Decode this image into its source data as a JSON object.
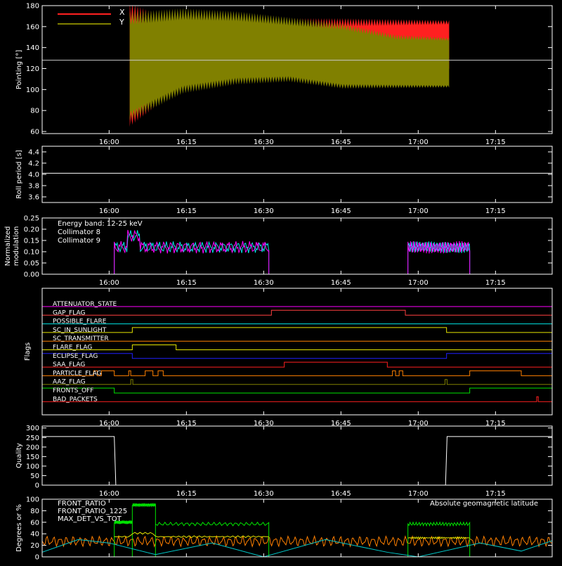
{
  "chart_data": [
    {
      "type": "line",
      "ylabel": "Pointing [°]",
      "ylim": [
        58,
        180
      ],
      "yticks": [
        "60",
        "80",
        "100",
        "120",
        "140",
        "160",
        "180"
      ],
      "xtick_labels": [
        "16:00",
        "16:15",
        "16:30",
        "16:45",
        "17:00",
        "17:15"
      ],
      "legend": [
        "X",
        "Y"
      ],
      "colors": {
        "x": "#ff2020",
        "y": "#808000",
        "ref": "#c8c8c8",
        "frame": "#ffffff"
      },
      "series": [
        {
          "name": "X",
          "x_min_start": 4,
          "x_min_end": 66,
          "upper": [
            175,
            155,
            160,
            163,
            164,
            164,
            164
          ],
          "lower": [
            70,
            108,
            115,
            118,
            120,
            120,
            121
          ]
        },
        {
          "name": "Y",
          "x_min_start": 4,
          "x_min_end": 66,
          "upper": [
            168,
            172,
            170,
            165,
            160,
            150,
            148
          ],
          "lower": [
            75,
            100,
            108,
            110,
            103,
            103,
            103
          ]
        }
      ],
      "reference_value": 128
    },
    {
      "type": "line",
      "ylabel": "Roll period [s]",
      "ylim": [
        3.5,
        4.5
      ],
      "yticks": [
        "3.6",
        "3.8",
        "4.0",
        "4.2",
        "4.4"
      ],
      "xtick_labels": [
        "16:00",
        "16:15",
        "16:30",
        "16:45",
        "17:00",
        "17:15"
      ],
      "series": [
        {
          "name": "",
          "value": 4.02
        }
      ]
    },
    {
      "type": "line",
      "ylabel": "Normalized modulation",
      "ylim": [
        0,
        0.25
      ],
      "yticks": [
        "0.00",
        "0.05",
        "0.10",
        "0.15",
        "0.20",
        "0.25"
      ],
      "xtick_labels": [
        "16:00",
        "16:15",
        "16:30",
        "16:45",
        "17:00",
        "17:15"
      ],
      "annotation": "Energy band: 12-25 keV",
      "legend": [
        "Collimator 8",
        "Collimator 9"
      ],
      "colors": {
        "c8": "#00e5e5",
        "c9": "#ff00ff"
      },
      "segments": [
        {
          "start_min": 1,
          "end_min": 31,
          "level": 0.12
        },
        {
          "start_min": 58,
          "end_min": 70,
          "level": 0.12
        }
      ]
    },
    {
      "type": "line",
      "ylabel": "Flags",
      "xtick_labels": [
        "16:00",
        "16:15",
        "16:30",
        "16:45",
        "17:00",
        "17:15"
      ],
      "flags": [
        {
          "name": "ATTENUATOR_STATE",
          "color": "#ff00ff",
          "high": []
        },
        {
          "name": "GAP_FLAG",
          "color": "#ff4040",
          "high": [
            [
              31.5,
              57.5
            ]
          ]
        },
        {
          "name": "POSSIBLE_FLARE",
          "color": "#00e5e5",
          "high": []
        },
        {
          "name": "SC_IN_SUNLIGHT",
          "color": "#e5e500",
          "high": [
            [
              4.5,
              65.5
            ]
          ]
        },
        {
          "name": "SC_TRANSMITTER",
          "color": "#ff8000",
          "high": []
        },
        {
          "name": "FLARE_FLAG",
          "color": "#e5e500",
          "high": [
            [
              4.5,
              13
            ]
          ]
        },
        {
          "name": "ECLIPSE_FLAG",
          "color": "#2020ff",
          "high": [
            [
              -13,
              4.5
            ],
            [
              65.5,
              86
            ]
          ]
        },
        {
          "name": "SAA_FLAG",
          "color": "#ff2020",
          "high": [
            [
              34,
              54
            ]
          ]
        },
        {
          "name": "PARTICLE_FLAG",
          "color": "#ff8000",
          "high": [
            [
              -3,
              -2.3
            ],
            [
              -1.5,
              1
            ],
            [
              3.8,
              4.2
            ],
            [
              7,
              8.5
            ],
            [
              9.5,
              10.5
            ],
            [
              55,
              55.6
            ],
            [
              56.3,
              57
            ],
            [
              70,
              80
            ]
          ]
        },
        {
          "name": "AAZ_FLAG",
          "color": "#808000",
          "high": [
            [
              4.2,
              4.6
            ],
            [
              65.2,
              65.6
            ]
          ]
        },
        {
          "name": "FRONTS_OFF",
          "color": "#00e500",
          "high": [
            [
              -13,
              1
            ],
            [
              70,
              86
            ]
          ]
        },
        {
          "name": "BAD_PACKETS",
          "color": "#ff2020",
          "high": [
            [
              83,
              83.3
            ]
          ]
        }
      ]
    },
    {
      "type": "line",
      "ylabel": "Quality",
      "ylim": [
        0,
        310
      ],
      "yticks": [
        "0",
        "50",
        "100",
        "150",
        "200",
        "250",
        "300"
      ],
      "xtick_labels": [
        "16:00",
        "16:15",
        "16:30",
        "16:45",
        "17:00",
        "17:15"
      ],
      "points": [
        [
          -13,
          255
        ],
        [
          1,
          255
        ],
        [
          1.3,
          0
        ],
        [
          65.3,
          0
        ],
        [
          65.6,
          255
        ],
        [
          86,
          255
        ]
      ]
    },
    {
      "type": "line",
      "ylabel": "Degrees or %",
      "ylim": [
        0,
        100
      ],
      "yticks": [
        "0",
        "20",
        "40",
        "60",
        "80",
        "100"
      ],
      "legend": [
        "FRONT_RATIO",
        "FRONT_RATIO_1225",
        "MAX_DET_VS_TOT"
      ],
      "annotation": "Absolute geomagnetic latitude",
      "colors": {
        "front_ratio": "#e5e500",
        "front_ratio_1225": "#00e500",
        "max_det": "#ff8000",
        "lat": "#00c8c8"
      },
      "front_ratio_1225_segments": [
        {
          "start_min": 1,
          "end_min": 4.5,
          "level": 60
        },
        {
          "start_min": 4.5,
          "end_min": 9,
          "level": 90
        },
        {
          "start_min": 9,
          "end_min": 31,
          "level": 57
        },
        {
          "start_min": 58,
          "end_min": 70,
          "level": 57
        }
      ],
      "latitude_points": [
        [
          -13,
          8
        ],
        [
          -6,
          30
        ],
        [
          0,
          24
        ],
        [
          9,
          4
        ],
        [
          20,
          24
        ],
        [
          30,
          0
        ],
        [
          42,
          30
        ],
        [
          54,
          8
        ],
        [
          60,
          0
        ],
        [
          72,
          24
        ],
        [
          80,
          10
        ],
        [
          86,
          28
        ]
      ]
    }
  ]
}
